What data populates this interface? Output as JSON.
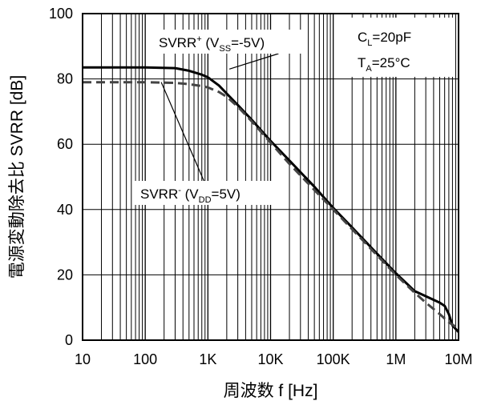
{
  "chart_data": {
    "type": "line",
    "xlabel": "周波数 f [Hz]",
    "ylabel": "電源変動除去比 SVRR [dB]",
    "x_scale": "log",
    "xlim": [
      10,
      10000000
    ],
    "ylim": [
      0,
      100
    ],
    "x_ticks": [
      {
        "value": 10,
        "label": "10"
      },
      {
        "value": 100,
        "label": "100"
      },
      {
        "value": 1000,
        "label": "1K"
      },
      {
        "value": 10000,
        "label": "10K"
      },
      {
        "value": 100000,
        "label": "100K"
      },
      {
        "value": 1000000,
        "label": "1M"
      },
      {
        "value": 10000000,
        "label": "10M"
      }
    ],
    "y_ticks": [
      0,
      20,
      40,
      60,
      80,
      100
    ],
    "grid": true,
    "conditions": {
      "load": {
        "main": "C",
        "sub": "L",
        "rest": "=20pF"
      },
      "temp": {
        "main": "T",
        "sub": "A",
        "rest": "=25°C"
      }
    },
    "series": [
      {
        "name": {
          "main": "SVRR",
          "sup": "+",
          "open": " (V",
          "sub": "SS",
          "close": "=-5V)"
        },
        "style": "solid",
        "color": "#000000",
        "points": [
          [
            10,
            83.5
          ],
          [
            100,
            83.5
          ],
          [
            300,
            83.3
          ],
          [
            500,
            82.5
          ],
          [
            800,
            81.3
          ],
          [
            1000,
            80.5
          ],
          [
            1500,
            78
          ],
          [
            2000,
            75.5
          ],
          [
            3000,
            72
          ],
          [
            5000,
            67.5
          ],
          [
            10000,
            61
          ],
          [
            20000,
            55
          ],
          [
            50000,
            47
          ],
          [
            100000,
            40.5
          ],
          [
            200000,
            34.5
          ],
          [
            500000,
            26.5
          ],
          [
            1000000,
            20.5
          ],
          [
            2000000,
            15
          ],
          [
            5000000,
            11.5
          ],
          [
            6000000,
            10.5
          ],
          [
            7000000,
            8
          ],
          [
            8000000,
            4.5
          ],
          [
            10000000,
            2.5
          ]
        ]
      },
      {
        "name": {
          "main": "SVRR",
          "sup": "-",
          "open": " (V",
          "sub": "DD",
          "close": "=5V)"
        },
        "style": "dashed",
        "color": "#444444",
        "points": [
          [
            10,
            79
          ],
          [
            100,
            79
          ],
          [
            300,
            78.8
          ],
          [
            500,
            78.4
          ],
          [
            800,
            77.8
          ],
          [
            1000,
            77.4
          ],
          [
            1500,
            76
          ],
          [
            2000,
            74.5
          ],
          [
            3000,
            71.5
          ],
          [
            5000,
            67
          ],
          [
            10000,
            60.5
          ],
          [
            20000,
            54
          ],
          [
            50000,
            46
          ],
          [
            100000,
            40
          ],
          [
            200000,
            34
          ],
          [
            500000,
            26
          ],
          [
            1000000,
            20
          ],
          [
            2000000,
            14.5
          ],
          [
            3000000,
            11.5
          ],
          [
            5000000,
            8
          ],
          [
            7000000,
            5.5
          ],
          [
            10000000,
            3.5
          ]
        ]
      }
    ],
    "labels": [
      {
        "series": 0,
        "anchor": [
          2200,
          83
        ],
        "box": {
          "main": "SVRR",
          "sup": "+",
          "open": " (V",
          "sub": "SS",
          "close": "=-5V)"
        }
      },
      {
        "series": 1,
        "anchor": [
          180,
          79
        ],
        "box": {
          "main": "SVRR",
          "sup": "-",
          "open": " (V",
          "sub": "DD",
          "close": "=5V)"
        }
      }
    ]
  }
}
